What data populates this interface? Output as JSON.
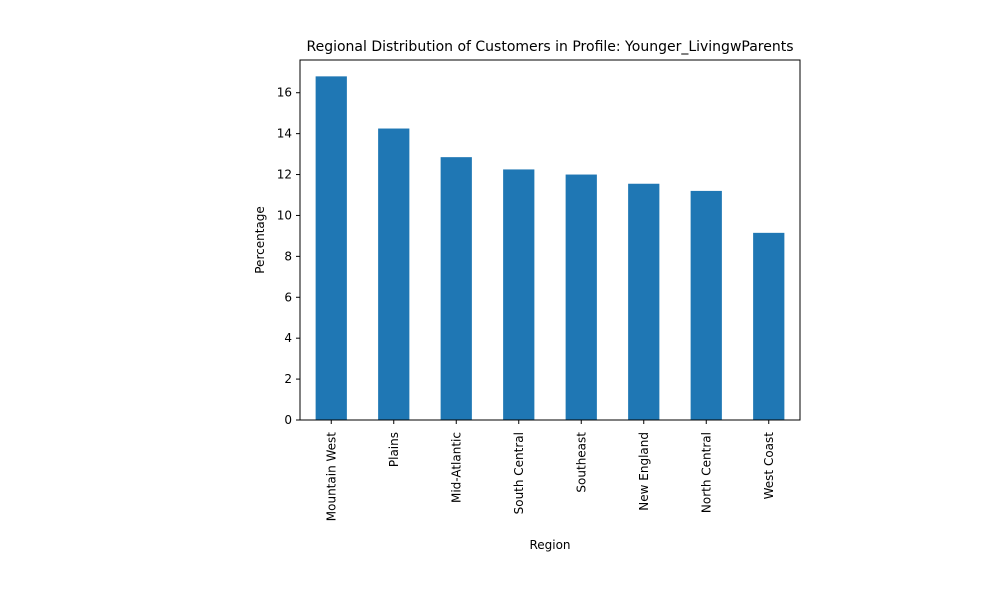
{
  "chart_data": {
    "type": "bar",
    "title": "Regional Distribution of Customers in Profile: Younger_LivingwParents",
    "xlabel": "Region",
    "ylabel": "Percentage",
    "categories": [
      "Mountain West",
      "Plains",
      "Mid-Atlantic",
      "South Central",
      "Southeast",
      "New England",
      "North Central",
      "West Coast"
    ],
    "values": [
      16.8,
      14.25,
      12.85,
      12.25,
      12.0,
      11.55,
      11.2,
      9.15
    ],
    "ylim": [
      0,
      17.6
    ],
    "yticks": [
      0,
      2,
      4,
      6,
      8,
      10,
      12,
      14,
      16
    ],
    "bar_color": "#1f77b4",
    "grid": false,
    "legend": "none"
  }
}
